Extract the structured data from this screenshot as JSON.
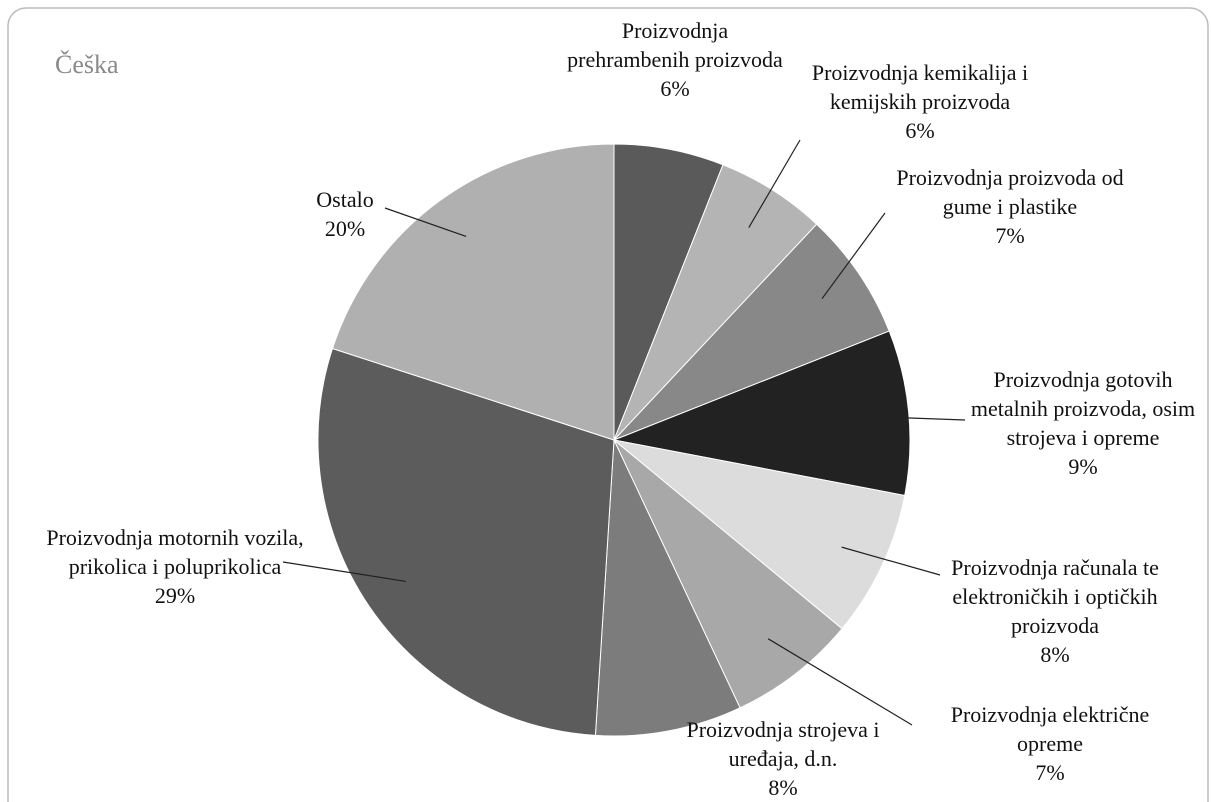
{
  "chart_data": {
    "type": "pie",
    "title": "Češka",
    "categories": [
      "Proizvodnja prehrambenih proizvoda",
      "Proizvodnja kemikalija i kemijskih proizvoda",
      "Proizvodnja proizvoda od gume i plastike",
      "Proizvodnja gotovih metalnih proizvoda, osim strojeva i opreme",
      "Proizvodnja računala te elektroničkih i optičkih proizvoda",
      "Proizvodnja električne opreme",
      "Proizvodnja strojeva i uređaja, d.n.",
      "Proizvodnja motornih vozila, prikolica i poluprikolica",
      "Ostalo"
    ],
    "values": [
      6,
      6,
      7,
      9,
      8,
      7,
      8,
      29,
      20
    ],
    "value_labels": [
      "6%",
      "6%",
      "7%",
      "9%",
      "8%",
      "7%",
      "8%",
      "29%",
      "20%"
    ],
    "colors": [
      "#5a5a5a",
      "#b4b4b4",
      "#888888",
      "#222222",
      "#dcdcdc",
      "#a8a8a8",
      "#7c7c7c",
      "#5c5c5c",
      "#b0b0b0"
    ]
  }
}
